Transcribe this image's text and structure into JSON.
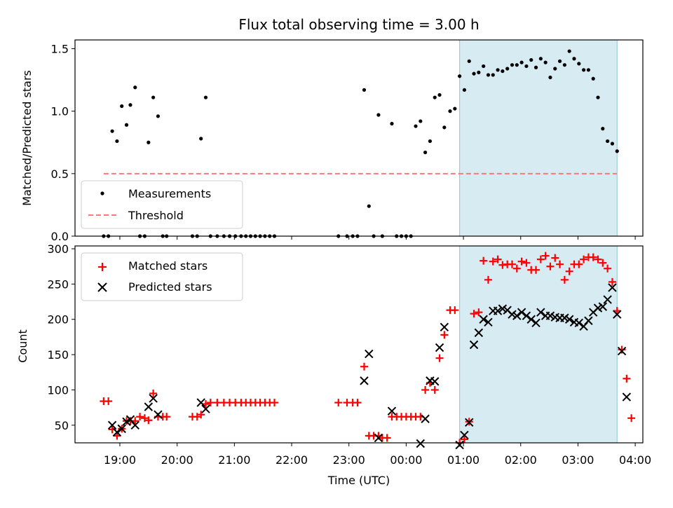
{
  "chart_data": [
    {
      "panel": "top",
      "type": "scatter",
      "title": "Flux total observing time = 3.00 h",
      "ylabel": "Matched/Predicted stars",
      "xlabel": "",
      "ylim": [
        0,
        1.57
      ],
      "yticks": [
        0.0,
        0.5,
        1.0,
        1.5
      ],
      "ytick_labels": [
        "0.0",
        "0.5",
        "1.0",
        "1.5"
      ],
      "legend_position": "lower-left",
      "highlight_band_color": "#add8e6",
      "series": [
        {
          "name": "Measurements",
          "kind": "points",
          "color": "#000000",
          "points": [
            [
              "18:43",
              0
            ],
            [
              "18:48",
              0
            ],
            [
              "18:52",
              0.84
            ],
            [
              "18:57",
              0.76
            ],
            [
              "19:02",
              1.04
            ],
            [
              "19:07",
              0.89
            ],
            [
              "19:11",
              1.05
            ],
            [
              "19:16",
              1.19
            ],
            [
              "19:21",
              0
            ],
            [
              "19:26",
              0
            ],
            [
              "19:30",
              0.75
            ],
            [
              "19:35",
              1.11
            ],
            [
              "19:40",
              0.96
            ],
            [
              "19:45",
              0
            ],
            [
              "19:49",
              0
            ],
            [
              "20:16",
              0
            ],
            [
              "20:21",
              0
            ],
            [
              "20:25",
              0.78
            ],
            [
              "20:30",
              1.11
            ],
            [
              "20:35",
              0
            ],
            [
              "20:42",
              0
            ],
            [
              "20:49",
              0
            ],
            [
              "20:55",
              0
            ],
            [
              "21:01",
              0
            ],
            [
              "21:07",
              0
            ],
            [
              "21:12",
              0
            ],
            [
              "21:17",
              0
            ],
            [
              "21:22",
              0
            ],
            [
              "21:27",
              0
            ],
            [
              "21:32",
              0
            ],
            [
              "21:37",
              0
            ],
            [
              "21:42",
              0
            ],
            [
              "22:49",
              0
            ],
            [
              "22:58",
              0
            ],
            [
              "23:04",
              0
            ],
            [
              "23:09",
              0
            ],
            [
              "23:16",
              1.17
            ],
            [
              "23:21",
              0.24
            ],
            [
              "23:26",
              0
            ],
            [
              "23:31",
              0.97
            ],
            [
              "23:35",
              0
            ],
            [
              "23:45",
              0.9
            ],
            [
              "23:50",
              0
            ],
            [
              "23:55",
              0
            ],
            [
              "00:00",
              0
            ],
            [
              "00:05",
              0
            ],
            [
              "00:10",
              0.88
            ],
            [
              "00:15",
              0.92
            ],
            [
              "00:20",
              0.67
            ],
            [
              "00:25",
              0.76
            ],
            [
              "00:30",
              1.11
            ],
            [
              "00:35",
              1.13
            ],
            [
              "00:40",
              0.87
            ],
            [
              "00:46",
              1.0
            ],
            [
              "00:51",
              1.02
            ],
            [
              "00:56",
              1.28
            ],
            [
              "01:01",
              1.17
            ],
            [
              "01:06",
              1.4
            ],
            [
              "01:11",
              1.3
            ],
            [
              "01:16",
              1.31
            ],
            [
              "01:21",
              1.36
            ],
            [
              "01:26",
              1.29
            ],
            [
              "01:31",
              1.29
            ],
            [
              "01:36",
              1.33
            ],
            [
              "01:41",
              1.32
            ],
            [
              "01:46",
              1.34
            ],
            [
              "01:51",
              1.37
            ],
            [
              "01:56",
              1.37
            ],
            [
              "02:01",
              1.39
            ],
            [
              "02:06",
              1.36
            ],
            [
              "02:11",
              1.41
            ],
            [
              "02:16",
              1.35
            ],
            [
              "02:21",
              1.42
            ],
            [
              "02:26",
              1.39
            ],
            [
              "02:31",
              1.27
            ],
            [
              "02:36",
              1.34
            ],
            [
              "02:41",
              1.4
            ],
            [
              "02:46",
              1.37
            ],
            [
              "02:51",
              1.48
            ],
            [
              "02:56",
              1.42
            ],
            [
              "03:01",
              1.38
            ],
            [
              "03:06",
              1.33
            ],
            [
              "03:11",
              1.33
            ],
            [
              "03:16",
              1.26
            ],
            [
              "03:21",
              1.11
            ],
            [
              "03:26",
              0.86
            ],
            [
              "03:31",
              0.76
            ],
            [
              "03:36",
              0.74
            ],
            [
              "03:41",
              0.68
            ]
          ]
        },
        {
          "name": "Threshold",
          "kind": "dashed-line",
          "color": "#ff7777",
          "points": [
            [
              "18:43",
              0.5
            ],
            [
              "03:41",
              0.5
            ]
          ]
        }
      ]
    },
    {
      "panel": "bottom",
      "type": "scatter",
      "title": "",
      "ylabel": "Count",
      "xlabel": "Time (UTC)",
      "ylim": [
        25,
        304
      ],
      "yticks": [
        50,
        100,
        150,
        200,
        250,
        300
      ],
      "ytick_labels": [
        "50",
        "100",
        "150",
        "200",
        "250",
        "300"
      ],
      "xticks": [
        "19:00",
        "20:00",
        "21:00",
        "22:00",
        "23:00",
        "00:00",
        "01:00",
        "02:00",
        "03:00",
        "04:00"
      ],
      "legend_position": "upper-left",
      "highlight_band_color": "#add8e6",
      "series": [
        {
          "name": "Matched stars",
          "kind": "plus",
          "color": "#ff0000",
          "points": [
            [
              "18:43",
              84
            ],
            [
              "18:48",
              84
            ],
            [
              "18:52",
              44
            ],
            [
              "18:57",
              35
            ],
            [
              "19:02",
              45
            ],
            [
              "19:07",
              56
            ],
            [
              "19:11",
              56
            ],
            [
              "19:16",
              56
            ],
            [
              "19:21",
              62
            ],
            [
              "19:26",
              60
            ],
            [
              "19:30",
              57
            ],
            [
              "19:35",
              95
            ],
            [
              "19:40",
              62
            ],
            [
              "19:45",
              62
            ],
            [
              "19:49",
              62
            ],
            [
              "20:16",
              62
            ],
            [
              "20:21",
              62
            ],
            [
              "20:25",
              65
            ],
            [
              "20:30",
              80
            ],
            [
              "20:35",
              82
            ],
            [
              "20:42",
              82
            ],
            [
              "20:49",
              82
            ],
            [
              "20:55",
              82
            ],
            [
              "21:01",
              82
            ],
            [
              "21:07",
              82
            ],
            [
              "21:12",
              82
            ],
            [
              "21:17",
              82
            ],
            [
              "21:22",
              82
            ],
            [
              "21:27",
              82
            ],
            [
              "21:32",
              82
            ],
            [
              "21:37",
              82
            ],
            [
              "21:42",
              82
            ],
            [
              "22:49",
              82
            ],
            [
              "22:58",
              82
            ],
            [
              "23:04",
              82
            ],
            [
              "23:09",
              82
            ],
            [
              "23:16",
              133
            ],
            [
              "23:21",
              35
            ],
            [
              "23:26",
              35
            ],
            [
              "23:31",
              35
            ],
            [
              "23:35",
              32
            ],
            [
              "23:40",
              32
            ],
            [
              "23:45",
              62
            ],
            [
              "23:50",
              62
            ],
            [
              "23:55",
              62
            ],
            [
              "00:00",
              62
            ],
            [
              "00:05",
              62
            ],
            [
              "00:10",
              62
            ],
            [
              "00:15",
              62
            ],
            [
              "00:20",
              100
            ],
            [
              "00:25",
              110
            ],
            [
              "00:30",
              100
            ],
            [
              "00:35",
              145
            ],
            [
              "00:40",
              178
            ],
            [
              "00:46",
              213
            ],
            [
              "00:51",
              213
            ],
            [
              "00:56",
              25
            ],
            [
              "01:01",
              30
            ],
            [
              "01:06",
              55
            ],
            [
              "01:11",
              208
            ],
            [
              "01:16",
              210
            ],
            [
              "01:21",
              283
            ],
            [
              "01:26",
              256
            ],
            [
              "01:31",
              282
            ],
            [
              "01:36",
              285
            ],
            [
              "01:41",
              277
            ],
            [
              "01:46",
              278
            ],
            [
              "01:51",
              278
            ],
            [
              "01:56",
              272
            ],
            [
              "02:01",
              282
            ],
            [
              "02:06",
              280
            ],
            [
              "02:11",
              270
            ],
            [
              "02:16",
              270
            ],
            [
              "02:21",
              285
            ],
            [
              "02:26",
              290
            ],
            [
              "02:31",
              275
            ],
            [
              "02:36",
              287
            ],
            [
              "02:41",
              278
            ],
            [
              "02:46",
              256
            ],
            [
              "02:51",
              268
            ],
            [
              "02:56",
              278
            ],
            [
              "03:01",
              278
            ],
            [
              "03:06",
              285
            ],
            [
              "03:11",
              288
            ],
            [
              "03:16",
              288
            ],
            [
              "03:21",
              285
            ],
            [
              "03:26",
              280
            ],
            [
              "03:31",
              272
            ],
            [
              "03:36",
              253
            ],
            [
              "03:41",
              212
            ],
            [
              "03:46",
              157
            ],
            [
              "03:51",
              116
            ],
            [
              "03:56",
              60
            ]
          ]
        },
        {
          "name": "Predicted stars",
          "kind": "cross",
          "color": "#000000",
          "points": [
            [
              "18:52",
              50
            ],
            [
              "18:57",
              40
            ],
            [
              "19:02",
              45
            ],
            [
              "19:07",
              55
            ],
            [
              "19:11",
              58
            ],
            [
              "19:16",
              50
            ],
            [
              "19:30",
              76
            ],
            [
              "19:35",
              88
            ],
            [
              "19:40",
              65
            ],
            [
              "20:25",
              82
            ],
            [
              "20:30",
              73
            ],
            [
              "23:16",
              113
            ],
            [
              "23:21",
              151
            ],
            [
              "23:31",
              32
            ],
            [
              "23:45",
              70
            ],
            [
              "00:15",
              24
            ],
            [
              "00:20",
              59
            ],
            [
              "00:25",
              113
            ],
            [
              "00:30",
              112
            ],
            [
              "00:35",
              160
            ],
            [
              "00:40",
              189
            ],
            [
              "00:56",
              22
            ],
            [
              "01:01",
              36
            ],
            [
              "01:06",
              54
            ],
            [
              "01:11",
              164
            ],
            [
              "01:16",
              181
            ],
            [
              "01:21",
              200
            ],
            [
              "01:26",
              196
            ],
            [
              "01:31",
              212
            ],
            [
              "01:36",
              212
            ],
            [
              "01:41",
              215
            ],
            [
              "01:46",
              213
            ],
            [
              "01:51",
              207
            ],
            [
              "01:56",
              205
            ],
            [
              "02:01",
              210
            ],
            [
              "02:06",
              205
            ],
            [
              "02:11",
              200
            ],
            [
              "02:16",
              195
            ],
            [
              "02:21",
              210
            ],
            [
              "02:26",
              205
            ],
            [
              "02:31",
              205
            ],
            [
              "02:36",
              203
            ],
            [
              "02:41",
              202
            ],
            [
              "02:46",
              202
            ],
            [
              "02:51",
              200
            ],
            [
              "02:56",
              196
            ],
            [
              "03:01",
              195
            ],
            [
              "03:06",
              190
            ],
            [
              "03:11",
              198
            ],
            [
              "03:16",
              210
            ],
            [
              "03:21",
              216
            ],
            [
              "03:26",
              218
            ],
            [
              "03:31",
              228
            ],
            [
              "03:36",
              245
            ],
            [
              "03:41",
              207
            ],
            [
              "03:46",
              155
            ],
            [
              "03:51",
              90
            ]
          ]
        }
      ]
    }
  ],
  "shared": {
    "band_start": "00:56",
    "band_end": "03:41",
    "x_range": [
      "18:13",
      "04:08"
    ]
  }
}
